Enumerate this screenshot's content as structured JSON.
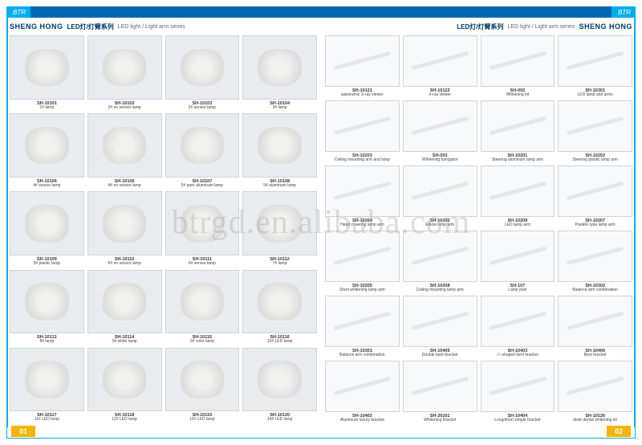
{
  "topBar": {
    "cornerText": "BTR"
  },
  "header": {
    "brand": "SHENG HONG",
    "chineseTitle": "LED灯/灯臂系列",
    "subtitle": "LED light / Light arm series"
  },
  "pageLeft": "01",
  "pageRight": "02",
  "watermark": "btrgd.en.alibaba.com",
  "leftGrid": [
    {
      "sku": "SH-10101",
      "label": "1# lamp"
    },
    {
      "sku": "SH-10102",
      "label": "2# no sensor lamp"
    },
    {
      "sku": "SH-10103",
      "label": "2# sensor lamp"
    },
    {
      "sku": "SH-10104",
      "label": "3# lamp"
    },
    {
      "sku": "SH-10106",
      "label": "4# sensor lamp"
    },
    {
      "sku": "SH-10105",
      "label": "4# no sensor lamp"
    },
    {
      "sku": "SH-10107",
      "label": "5# pure aluminum lamp"
    },
    {
      "sku": "SH-10108",
      "label": "5# aluminum lamp"
    },
    {
      "sku": "SH-10109",
      "label": "5# plastic lamp"
    },
    {
      "sku": "SH-10110",
      "label": "6# no sensor lamp"
    },
    {
      "sku": "SH-10111",
      "label": "6# sensor lamp"
    },
    {
      "sku": "SH-10112",
      "label": "7# lamp"
    },
    {
      "sku": "SH-10113",
      "label": "8# lamp"
    },
    {
      "sku": "SH-10114",
      "label": "9# white lamp"
    },
    {
      "sku": "SH-10115",
      "label": "9# color lamp"
    },
    {
      "sku": "SH-10116",
      "label": "10# LED lamp"
    },
    {
      "sku": "SH-10117",
      "label": "11# LED lamp"
    },
    {
      "sku": "SH-10118",
      "label": "12# LED lamp"
    },
    {
      "sku": "SH-10119",
      "label": "13# LED lamp"
    },
    {
      "sku": "SH-10120",
      "label": "14# LED lamp"
    }
  ],
  "rightGrid": [
    {
      "sku": "SH-10121",
      "label": "panoramic X-ray viewer"
    },
    {
      "sku": "SH-10122",
      "label": "X-ray viewer"
    },
    {
      "sku": "SH-002",
      "label": "Whitening kit"
    },
    {
      "sku": "SH-10301",
      "label": "LED lamp and arms"
    },
    {
      "sku": "SH-10203",
      "label": "Ceiling mounting arm and lamp"
    },
    {
      "sku": "SH-003",
      "label": "Whitening fumigator"
    },
    {
      "sku": "SH-10201",
      "label": "Steering aluminum lamp arm"
    },
    {
      "sku": "SH-10202",
      "label": "Steering plastic lamp arm"
    },
    {
      "sku": "SH-10204",
      "label": "Head covering lamp arm"
    },
    {
      "sku": "SH-10206",
      "label": "Elbow lamp arm"
    },
    {
      "sku": "SH-10209",
      "label": "LED lamp arm"
    },
    {
      "sku": "SH-10207",
      "label": "Parallel type lamp arm"
    },
    {
      "sku": "SH-10205",
      "label": "Short whitening lamp arm"
    },
    {
      "sku": "SH-10208",
      "label": "Ceiling mounting lamp arm"
    },
    {
      "sku": "SH-107",
      "label": "Lamp post"
    },
    {
      "sku": "SH-10302",
      "label": "Balance arm combination"
    },
    {
      "sku": "SH-10301",
      "label": "Balance arm combination"
    },
    {
      "sku": "SH-10405",
      "label": "Double bent bracket"
    },
    {
      "sku": "SH-10403",
      "label": "八-shaped bent bracket"
    },
    {
      "sku": "SH-10406",
      "label": "Bent bracket"
    },
    {
      "sku": "SH-10402",
      "label": "Aluminum luxury bracket"
    },
    {
      "sku": "SH-20101",
      "label": "Whitening bracket"
    },
    {
      "sku": "SH-10404",
      "label": "Long/short simple bracket"
    },
    {
      "sku": "SH-10126",
      "label": "desk dental whitening kit"
    }
  ],
  "colors": {
    "accent": "#00aeef",
    "topFill": "#0068b3",
    "badge": "#f8b400",
    "brandText": "#003a6a"
  }
}
